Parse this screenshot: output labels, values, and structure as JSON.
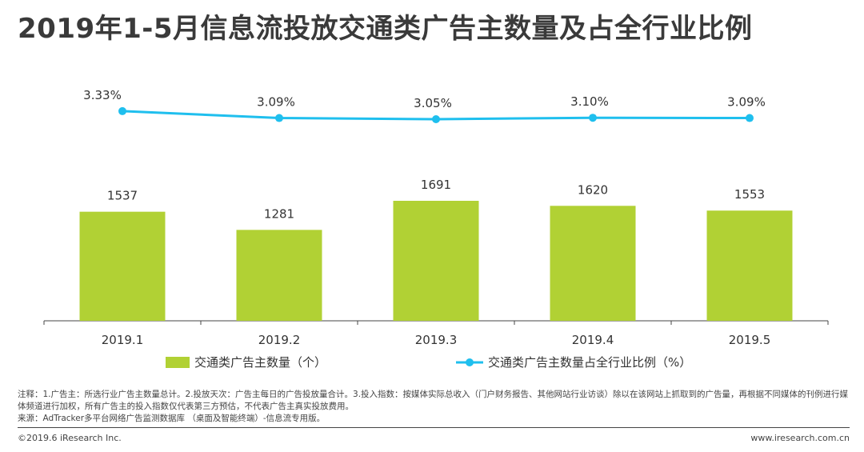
{
  "title": "2019年1-5月信息流投放交通类广告主数量及占全行业比例",
  "colors": {
    "bar": "#b1d134",
    "line": "#1fbfee",
    "axis": "#444444",
    "text": "#333333"
  },
  "chart_data": {
    "type": "bar+line",
    "categories": [
      "2019.1",
      "2019.2",
      "2019.3",
      "2019.4",
      "2019.5"
    ],
    "series": [
      {
        "name": "交通类广告主数量（个）",
        "type": "bar",
        "values": [
          1537,
          1281,
          1691,
          1620,
          1553
        ],
        "labels": [
          "1537",
          "1281",
          "1691",
          "1620",
          "1553"
        ]
      },
      {
        "name": "交通类广告主数量占全行业比例（%）",
        "type": "line",
        "values": [
          3.33,
          3.09,
          3.05,
          3.1,
          3.09
        ],
        "labels": [
          "3.33%",
          "3.09%",
          "3.05%",
          "3.10%",
          "3.09%"
        ]
      }
    ],
    "legend": "bottom",
    "grid": false
  },
  "notes": {
    "line1": "注释：1.广告主：所选行业广告主数量总计。2.投放天次：广告主每日的广告投放量合计。3.投入指数：按媒体实际总收入（门户财务报告、其他网站行业访谈）除以在该网站上抓取到的广告量，再根据不同媒体的刊例进行媒体频道进行加权，所有广告主的投入指数仅代表第三方预估，不代表广告主真实投放费用。",
    "line2": "来源：AdTracker多平台网络广告监测数据库 （桌面及智能终端）-信息流专用版。"
  },
  "footer": {
    "copyright": "©2019.6 iResearch Inc.",
    "site": "www.iresearch.com.cn"
  }
}
